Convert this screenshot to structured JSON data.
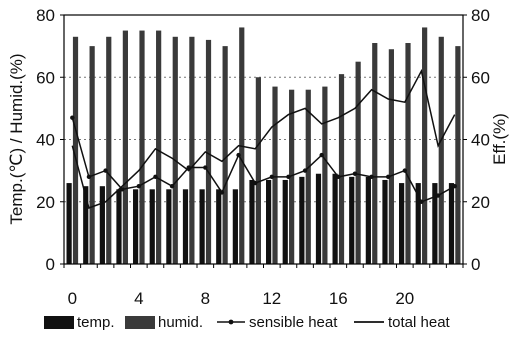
{
  "chart_data": {
    "type": "bar",
    "title": "",
    "x": [
      0,
      1,
      2,
      3,
      4,
      5,
      6,
      7,
      8,
      9,
      10,
      11,
      12,
      13,
      14,
      15,
      16,
      17,
      18,
      19,
      20,
      21,
      22,
      23
    ],
    "xticks": [
      "0",
      "4",
      "8",
      "12",
      "16",
      "20"
    ],
    "xtick_values": [
      0,
      4,
      8,
      12,
      16,
      20
    ],
    "ylabel_left": "Temp.(℃) / Humid.(%)",
    "ylabel_right": "Eff.(%)",
    "ylim_left": [
      0,
      80
    ],
    "ylim_right": [
      0,
      80
    ],
    "yticks_left": [
      "0",
      "20",
      "40",
      "60",
      "80"
    ],
    "yticks_right": [
      "0",
      "20",
      "40",
      "60",
      "80"
    ],
    "grid": "horizontal dashed",
    "legend_position": "bottom",
    "series": [
      {
        "name": "temp.",
        "kind": "bar",
        "axis": "left",
        "color": "#111111",
        "values": [
          26,
          25,
          25,
          24,
          24,
          24,
          24,
          24,
          24,
          24,
          24,
          27,
          27,
          27,
          28,
          29,
          29,
          28,
          28,
          27,
          26,
          26,
          26,
          26
        ]
      },
      {
        "name": "humid.",
        "kind": "bar",
        "axis": "left",
        "color": "#3a3a3a",
        "values": [
          73,
          70,
          73,
          75,
          75,
          75,
          73,
          73,
          72,
          70,
          76,
          60,
          57,
          56,
          56,
          57,
          61,
          65,
          71,
          69,
          71,
          76,
          73,
          70
        ]
      },
      {
        "name": "sensible heat",
        "kind": "line-marker",
        "axis": "right",
        "color": "#111111",
        "values": [
          47,
          28,
          30,
          24,
          25,
          28,
          25,
          31,
          31,
          23,
          35,
          26,
          28,
          28,
          30,
          35,
          28,
          29,
          28,
          28,
          30,
          20,
          22,
          25
        ]
      },
      {
        "name": "total heat",
        "kind": "line",
        "axis": "right",
        "color": "#111111",
        "values": [
          38,
          18,
          20,
          25,
          30,
          37,
          34,
          30,
          36,
          33,
          38,
          37,
          44,
          48,
          50,
          45,
          47,
          50,
          56,
          53,
          52,
          62,
          38,
          48
        ]
      }
    ]
  }
}
